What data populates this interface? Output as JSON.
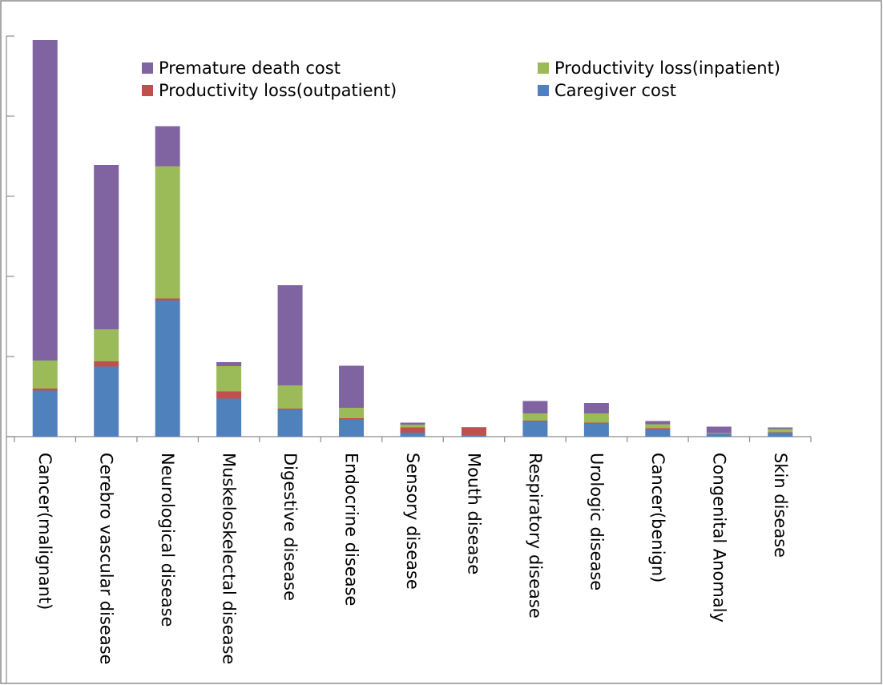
{
  "chart_data": {
    "type": "bar",
    "stacked": true,
    "title": "",
    "xlabel": "",
    "ylabel": "",
    "ylim": [
      0,
      100
    ],
    "y_ticks": [
      0,
      20,
      40,
      60,
      80,
      100
    ],
    "y_tick_labels_visible": false,
    "grid": false,
    "legend_position": "top",
    "categories": [
      "Cancer(malignant)",
      "Cerebro vascular disease",
      "Neurological disease",
      "Muskeloskelectal disease",
      "Digestive  disease",
      "Endocrine disease",
      "Sensory disease",
      "Mouth disease",
      "Respiratory disease",
      "Urologic disease",
      "Cancer(benign)",
      "Congenital Anomaly",
      "Skin disease"
    ],
    "series": [
      {
        "name": "Caregiver cost",
        "color": "#4f81bd",
        "values": [
          11.5,
          17.5,
          34,
          9.5,
          6.8,
          4.3,
          1.0,
          0.4,
          3.8,
          3.3,
          1.8,
          0.6,
          1.0
        ]
      },
      {
        "name": "Productivity loss(outpatient)",
        "color": "#c0504d",
        "values": [
          0.5,
          1.3,
          0.5,
          1.8,
          0.2,
          0.3,
          1.3,
          1.8,
          0.2,
          0.2,
          0.3,
          0.1,
          0.1
        ]
      },
      {
        "name": "Productivity loss(inpatient)",
        "color": "#9bbb59",
        "values": [
          7,
          8,
          33,
          6.3,
          5.8,
          2.6,
          0.7,
          0.1,
          1.8,
          2.3,
          1.0,
          0.2,
          0.8
        ]
      },
      {
        "name": "Premature death cost",
        "color": "#8064a2",
        "values": [
          80,
          41,
          10,
          1.0,
          25,
          10.5,
          0.5,
          0.1,
          3.1,
          2.6,
          0.8,
          1.6,
          0.4
        ]
      }
    ],
    "legend_order": [
      "Premature death cost",
      "Productivity loss(inpatient)",
      "Productivity loss(outpatient)",
      "Caregiver cost"
    ]
  }
}
